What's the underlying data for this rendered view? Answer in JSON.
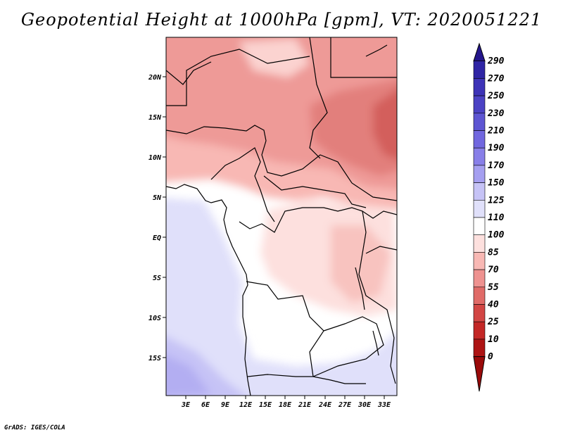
{
  "title": "Geopotential Height at 1000hPa [gpm], VT: 2020051221",
  "credit": "GrADS: IGES/COLA",
  "map": {
    "lat_labels": [
      "20N",
      "15N",
      "10N",
      "5N",
      "EQ",
      "5S",
      "10S",
      "15S"
    ],
    "lon_labels": [
      "3E",
      "6E",
      "9E",
      "12E",
      "15E",
      "18E",
      "21E",
      "24E",
      "27E",
      "30E",
      "33E"
    ]
  },
  "colorbar": {
    "labels": [
      "290",
      "270",
      "250",
      "230",
      "210",
      "190",
      "170",
      "150",
      "125",
      "110",
      "100",
      "85",
      "70",
      "55",
      "40",
      "25",
      "10",
      "0"
    ],
    "colors": [
      "#24168c",
      "#2f25a5",
      "#3d33b7",
      "#4b42c4",
      "#5d55d2",
      "#7167df",
      "#887fe8",
      "#a59ff0",
      "#c6c3f6",
      "#e0e0fa",
      "#ffffff",
      "#fde0de",
      "#f8b8b4",
      "#ee9290",
      "#e06b68",
      "#d24644",
      "#c32726",
      "#ad1414",
      "#9a0a0a"
    ]
  }
}
